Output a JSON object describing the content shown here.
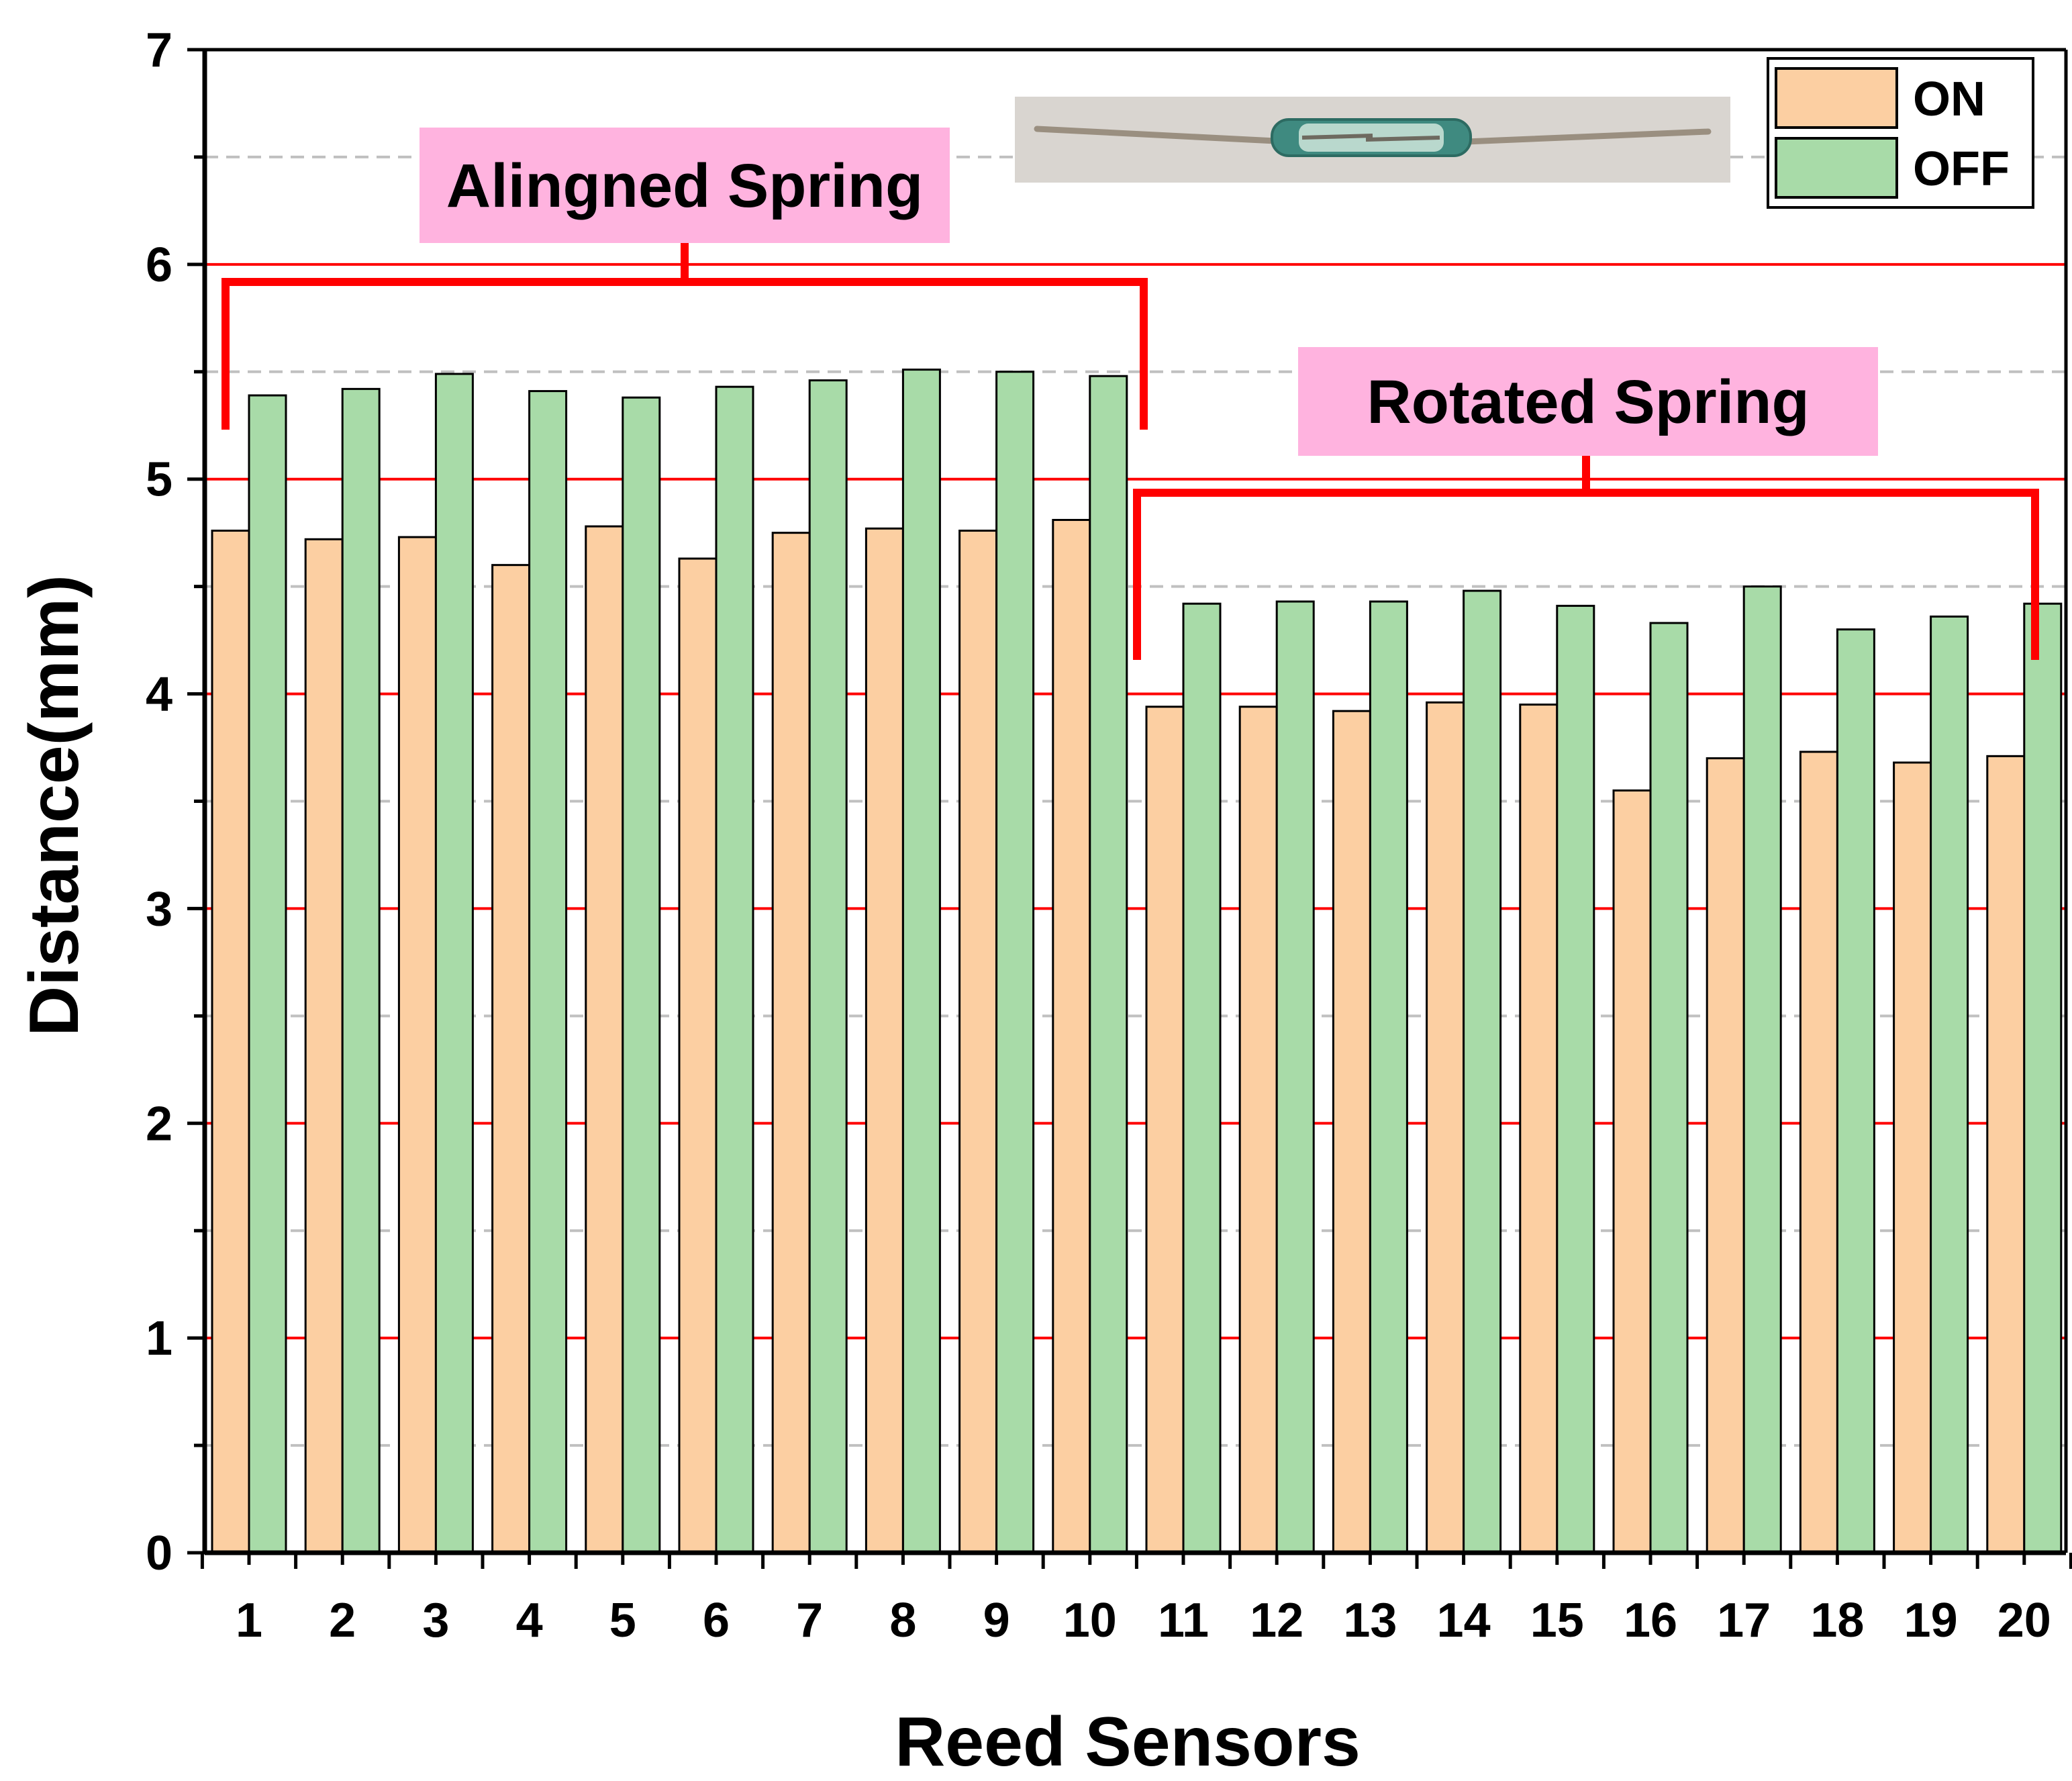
{
  "chart_data": {
    "type": "bar",
    "title": "",
    "xlabel": "Reed Sensors",
    "ylabel": "Distance(mm)",
    "ylim": [
      0,
      7
    ],
    "yticks": [
      "0",
      "1",
      "2",
      "3",
      "4",
      "5",
      "6",
      "7"
    ],
    "categories": [
      "1",
      "2",
      "3",
      "4",
      "5",
      "6",
      "7",
      "8",
      "9",
      "10",
      "11",
      "12",
      "13",
      "14",
      "15",
      "16",
      "17",
      "18",
      "19",
      "20"
    ],
    "series": [
      {
        "name": "ON",
        "color": "#fccfa2",
        "values": [
          4.76,
          4.72,
          4.73,
          4.6,
          4.78,
          4.63,
          4.75,
          4.77,
          4.76,
          4.81,
          3.94,
          3.94,
          3.92,
          3.96,
          3.95,
          3.55,
          3.7,
          3.73,
          3.68,
          3.71
        ]
      },
      {
        "name": "OFF",
        "color": "#a8dba8",
        "values": [
          5.39,
          5.42,
          5.49,
          5.41,
          5.38,
          5.43,
          5.46,
          5.51,
          5.5,
          5.48,
          4.42,
          4.43,
          4.43,
          4.48,
          4.41,
          4.33,
          4.5,
          4.3,
          4.36,
          4.42
        ]
      }
    ],
    "grid": {
      "major_y": true,
      "major_color": "#ff0000",
      "minor_y": true,
      "minor_color": "#c0c0c0",
      "minor_style": "dashed"
    },
    "legend": {
      "position": "top-right",
      "entries": [
        "ON",
        "OFF"
      ]
    },
    "annotations": [
      {
        "text": "Alingned Spring",
        "spans_categories": [
          "1",
          "10"
        ],
        "bracket_color": "#ff0000",
        "label_background": "#ffb3df"
      },
      {
        "text": "Rotated Spring",
        "spans_categories": [
          "11",
          "20"
        ],
        "bracket_color": "#ff0000",
        "label_background": "#ffb3df"
      }
    ],
    "inset_image": "reed switch photo"
  }
}
